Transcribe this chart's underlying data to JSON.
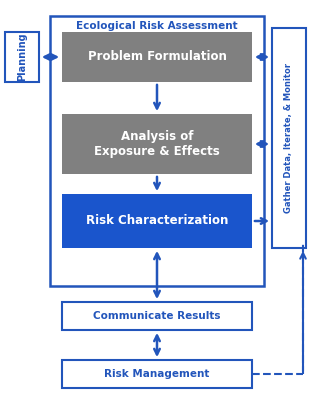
{
  "title": "Ecological Risk Assessment",
  "title_color": "#2255bb",
  "background_color": "#ffffff",
  "blue": "#2255bb",
  "gray": "#808080",
  "block_blue": "#1a55cc",
  "white": "#ffffff",
  "blocks": [
    {
      "label": "Problem Formulation",
      "type": "gray"
    },
    {
      "label": "Analysis of\nExposure & Effects",
      "type": "gray"
    },
    {
      "label": "Risk Characterization",
      "type": "blue"
    }
  ],
  "planning_label": "Planning",
  "gather_label": "Gather Data, Iterate, & Monitor",
  "communicate_label": "Communicate Results",
  "risk_mgmt_label": "Risk Management",
  "figw": 3.14,
  "figh": 3.98,
  "dpi": 100
}
